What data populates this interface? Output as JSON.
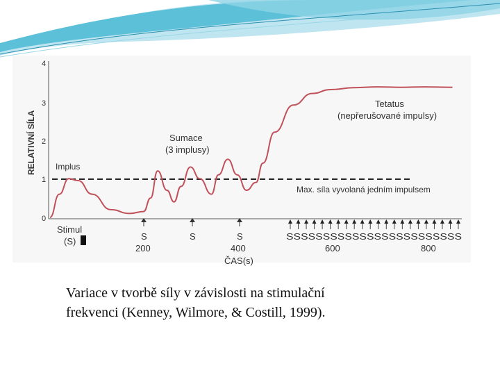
{
  "slide": {
    "caption_line1": "Variace v tvorbě síly v závislosti na stimulační",
    "caption_line2": "frekvenci (Kenney, Wilmore, & Costill, 1999)."
  },
  "colors": {
    "header_teal": "#5bc0d8",
    "header_light": "#bfe6f0",
    "curve_red": "#c0505a",
    "panel_bg": "#f7f7f7"
  },
  "chart_data": {
    "type": "line",
    "ylabel": "RELATIVNÍ SÍLA",
    "xlabel": "ČAS(s)",
    "yticks": [
      "0",
      "1",
      "2",
      "3",
      "4"
    ],
    "xticks": [
      "200",
      "400",
      "600",
      "800"
    ],
    "stimulus_label": "Stimul",
    "stimulus_unit": "(S)",
    "stimulus_marks": "S",
    "tetanus_marks": "SSSSSSSSSSSSSSSSSSSSSSSS",
    "reference_line_value": 1,
    "annotations": {
      "impulse": "Implus",
      "summation_line1": "Sumace",
      "summation_line2": "(3 implusy)",
      "tetanus_line1": "Tetatus",
      "tetanus_line2": "(nepřerušované impulsy)",
      "max_single": "Max. síla vyvolaná jedním impulsem"
    },
    "series": [
      {
        "x": [
          0,
          20,
          40,
          60,
          90,
          130,
          170,
          200,
          215,
          230,
          250,
          265,
          280,
          300,
          320,
          345,
          360,
          380,
          400,
          420,
          440,
          455,
          480,
          520,
          560,
          600,
          650,
          700,
          750,
          800,
          860
        ],
        "values": [
          0,
          0.6,
          1.0,
          0.95,
          0.6,
          0.2,
          0.1,
          0.15,
          0.5,
          1.2,
          0.7,
          0.4,
          0.8,
          1.3,
          1.0,
          0.6,
          1.1,
          1.5,
          1.1,
          0.7,
          0.9,
          1.4,
          2.2,
          2.9,
          3.2,
          3.3,
          3.35,
          3.37,
          3.36,
          3.37,
          3.36
        ]
      }
    ],
    "stimuli_x": [
      0,
      200,
      280,
      360
    ],
    "tetanus_x": [
      455,
      860
    ],
    "xlim": [
      0,
      880
    ],
    "ylim": [
      0,
      4
    ]
  }
}
